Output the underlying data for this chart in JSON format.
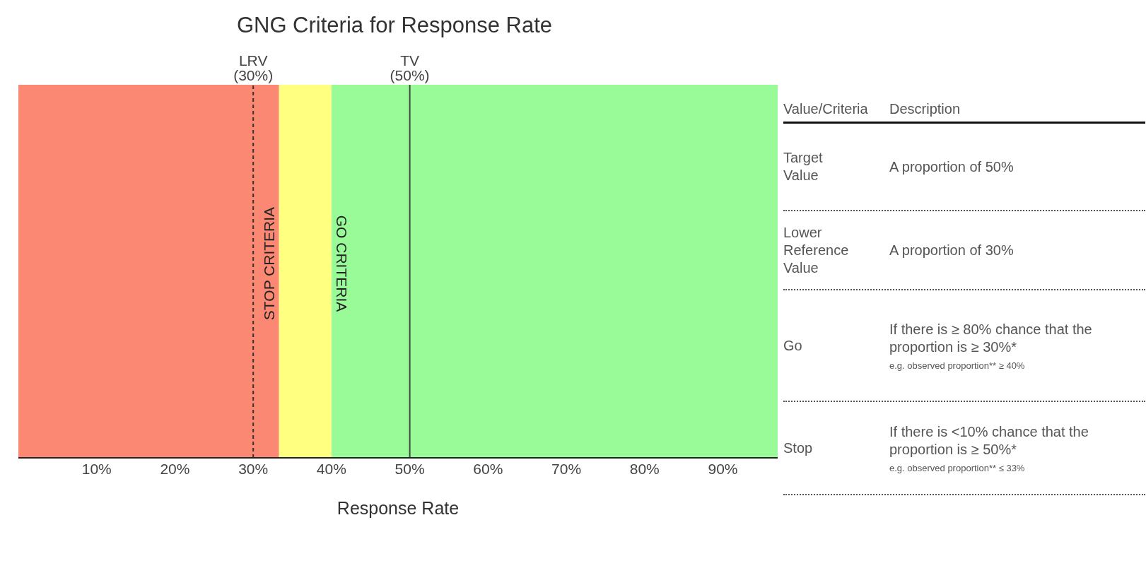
{
  "chart_data": [
    {
      "type": "bar",
      "orientation": "horizontal",
      "stacked": true,
      "title": "GNG Criteria for Response Rate",
      "xlabel": "Response Rate",
      "xlim": [
        0,
        97
      ],
      "xticks": [
        {
          "value": 10,
          "label": "10%"
        },
        {
          "value": 20,
          "label": "20%"
        },
        {
          "value": 30,
          "label": "30%"
        },
        {
          "value": 40,
          "label": "40%"
        },
        {
          "value": 50,
          "label": "50%"
        },
        {
          "value": 60,
          "label": "60%"
        },
        {
          "value": 70,
          "label": "70%"
        },
        {
          "value": 80,
          "label": "80%"
        },
        {
          "value": 90,
          "label": "90%"
        }
      ],
      "categories": [
        null
      ],
      "series": [
        {
          "color": "#fa8872",
          "values": [
            33.3
          ]
        },
        {
          "color": "#ffff80",
          "values": [
            6.7
          ]
        },
        {
          "color": "#98fb98",
          "values": [
            57
          ]
        }
      ],
      "ref_lines": [
        {
          "axis": "x",
          "value": 30,
          "label": "LRV\n(30%)",
          "color": "#333333",
          "line_style": "dashed"
        },
        {
          "axis": "x",
          "value": 50,
          "label": "TV\n(50%)",
          "color": "#444444",
          "line_style": "solid"
        }
      ],
      "annotations": [
        {
          "text": "STOP CRITERIA",
          "x": 33.3
        },
        {
          "text": "GO CRITERIA",
          "x": 40
        }
      ]
    },
    {
      "type": "other",
      "categories": [
        "Target Value",
        "Lower Reference Value",
        "Go",
        "Stop"
      ],
      "annotations": [
        "Value/Criteria",
        "Description",
        "A proportion of 50%",
        "A proportion of 30%",
        "If there is ≥ 80% chance that the proportion is ≥ 30%*",
        "e.g. observed proportion** ≥ 40%",
        "If there is <10% chance that the proportion is ≥ 50%*",
        "e.g. observed proportion** ≤ 33%"
      ]
    }
  ]
}
